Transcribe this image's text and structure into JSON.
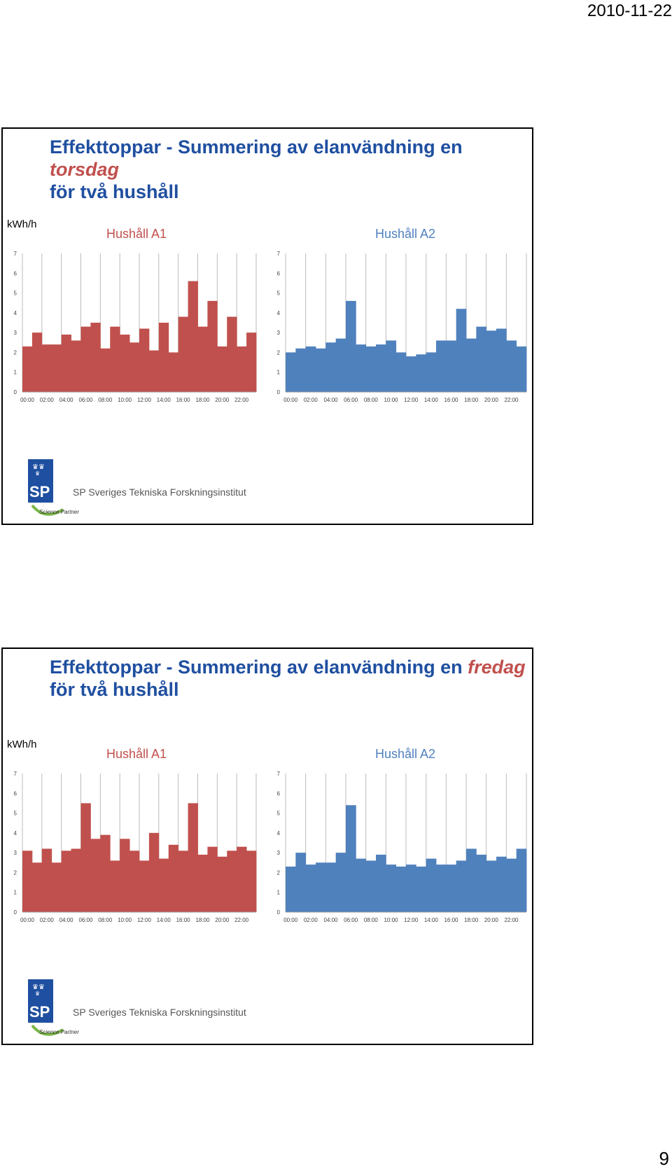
{
  "page": {
    "date": "2010-11-22",
    "page_number": "9"
  },
  "logo": {
    "initials": "SP",
    "name": "SP Sveriges Tekniska Forskningsinstitut",
    "badge": "Science Partner"
  },
  "colors": {
    "title_blue": "#1f4fa0",
    "a1_red": "#c0504d",
    "a2_blue": "#4f81bd"
  },
  "slides": [
    {
      "title_prefix": "Effekttoppar - Summering av elanvändning en ",
      "title_day": "torsdag",
      "title_suffix": "för två hushåll",
      "unit_label": "kWh/h",
      "charts": [
        {
          "title": "Hushåll A1"
        },
        {
          "title": "Hushåll A2"
        }
      ]
    },
    {
      "title_prefix": "Effekttoppar - Summering av elanvändning en ",
      "title_day": "fredag",
      "title_suffix": "för två hushåll",
      "unit_label": "kWh/h",
      "charts": [
        {
          "title": "Hushåll A1"
        },
        {
          "title": "Hushåll A2"
        }
      ]
    }
  ],
  "chart_data": [
    {
      "type": "bar",
      "title": "Hushåll A1",
      "ylabel": "kWh/h",
      "ylim": [
        0,
        7
      ],
      "color": "#c0504d",
      "categories": [
        "00:00",
        "01:00",
        "02:00",
        "03:00",
        "04:00",
        "05:00",
        "06:00",
        "07:00",
        "08:00",
        "09:00",
        "10:00",
        "11:00",
        "12:00",
        "13:00",
        "14:00",
        "15:00",
        "16:00",
        "17:00",
        "18:00",
        "19:00",
        "20:00",
        "21:00",
        "22:00",
        "23:00"
      ],
      "tick_labels": [
        "00:00",
        "02:00",
        "04:00",
        "06:00",
        "08:00",
        "10:00",
        "12:00",
        "14:00",
        "16:00",
        "18:00",
        "20:00",
        "22:00"
      ],
      "yticks": [
        0,
        1,
        2,
        3,
        4,
        5,
        6,
        7
      ],
      "values": [
        2.3,
        3.0,
        2.4,
        2.4,
        2.9,
        2.6,
        3.3,
        3.5,
        2.2,
        3.3,
        2.9,
        2.5,
        3.2,
        2.1,
        3.5,
        2.0,
        3.8,
        5.6,
        3.3,
        4.6,
        2.3,
        3.8,
        2.3,
        3.0
      ]
    },
    {
      "type": "bar",
      "title": "Hushåll A2",
      "ylabel": "kWh/h",
      "ylim": [
        0,
        7
      ],
      "color": "#4f81bd",
      "categories": [
        "00:00",
        "01:00",
        "02:00",
        "03:00",
        "04:00",
        "05:00",
        "06:00",
        "07:00",
        "08:00",
        "09:00",
        "10:00",
        "11:00",
        "12:00",
        "13:00",
        "14:00",
        "15:00",
        "16:00",
        "17:00",
        "18:00",
        "19:00",
        "20:00",
        "21:00",
        "22:00",
        "23:00"
      ],
      "tick_labels": [
        "00:00",
        "02:00",
        "04:00",
        "06:00",
        "08:00",
        "10:00",
        "12:00",
        "14:00",
        "16:00",
        "18:00",
        "20:00",
        "22:00"
      ],
      "yticks": [
        0,
        1,
        2,
        3,
        4,
        5,
        6,
        7
      ],
      "values": [
        2.0,
        2.2,
        2.3,
        2.2,
        2.5,
        2.7,
        4.6,
        2.4,
        2.3,
        2.4,
        2.6,
        2.0,
        1.8,
        1.9,
        2.0,
        2.6,
        2.6,
        4.2,
        2.7,
        3.3,
        3.1,
        3.2,
        2.6,
        2.3
      ]
    },
    {
      "type": "bar",
      "title": "Hushåll A1",
      "ylabel": "kWh/h",
      "ylim": [
        0,
        7
      ],
      "color": "#c0504d",
      "categories": [
        "00:00",
        "01:00",
        "02:00",
        "03:00",
        "04:00",
        "05:00",
        "06:00",
        "07:00",
        "08:00",
        "09:00",
        "10:00",
        "11:00",
        "12:00",
        "13:00",
        "14:00",
        "15:00",
        "16:00",
        "17:00",
        "18:00",
        "19:00",
        "20:00",
        "21:00",
        "22:00",
        "23:00"
      ],
      "tick_labels": [
        "00:00",
        "02:00",
        "04:00",
        "06:00",
        "08:00",
        "10:00",
        "12:00",
        "14:00",
        "16:00",
        "18:00",
        "20:00",
        "22:00"
      ],
      "yticks": [
        0,
        1,
        2,
        3,
        4,
        5,
        6,
        7
      ],
      "values": [
        3.1,
        2.5,
        3.2,
        2.5,
        3.1,
        3.2,
        5.5,
        3.7,
        3.9,
        2.6,
        3.7,
        3.1,
        2.6,
        4.0,
        2.7,
        3.4,
        3.1,
        5.5,
        2.9,
        3.3,
        2.8,
        3.1,
        3.3,
        3.1
      ]
    },
    {
      "type": "bar",
      "title": "Hushåll A2",
      "ylabel": "kWh/h",
      "ylim": [
        0,
        7
      ],
      "color": "#4f81bd",
      "categories": [
        "00:00",
        "01:00",
        "02:00",
        "03:00",
        "04:00",
        "05:00",
        "06:00",
        "07:00",
        "08:00",
        "09:00",
        "10:00",
        "11:00",
        "12:00",
        "13:00",
        "14:00",
        "15:00",
        "16:00",
        "17:00",
        "18:00",
        "19:00",
        "20:00",
        "21:00",
        "22:00",
        "23:00"
      ],
      "tick_labels": [
        "00:00",
        "02:00",
        "04:00",
        "06:00",
        "08:00",
        "10:00",
        "12:00",
        "14:00",
        "16:00",
        "18:00",
        "20:00",
        "22:00"
      ],
      "yticks": [
        0,
        1,
        2,
        3,
        4,
        5,
        6,
        7
      ],
      "values": [
        2.3,
        3.0,
        2.4,
        2.5,
        2.5,
        3.0,
        5.4,
        2.7,
        2.6,
        2.9,
        2.4,
        2.3,
        2.4,
        2.3,
        2.7,
        2.4,
        2.4,
        2.6,
        3.2,
        2.9,
        2.6,
        2.8,
        2.7,
        3.2
      ]
    }
  ]
}
